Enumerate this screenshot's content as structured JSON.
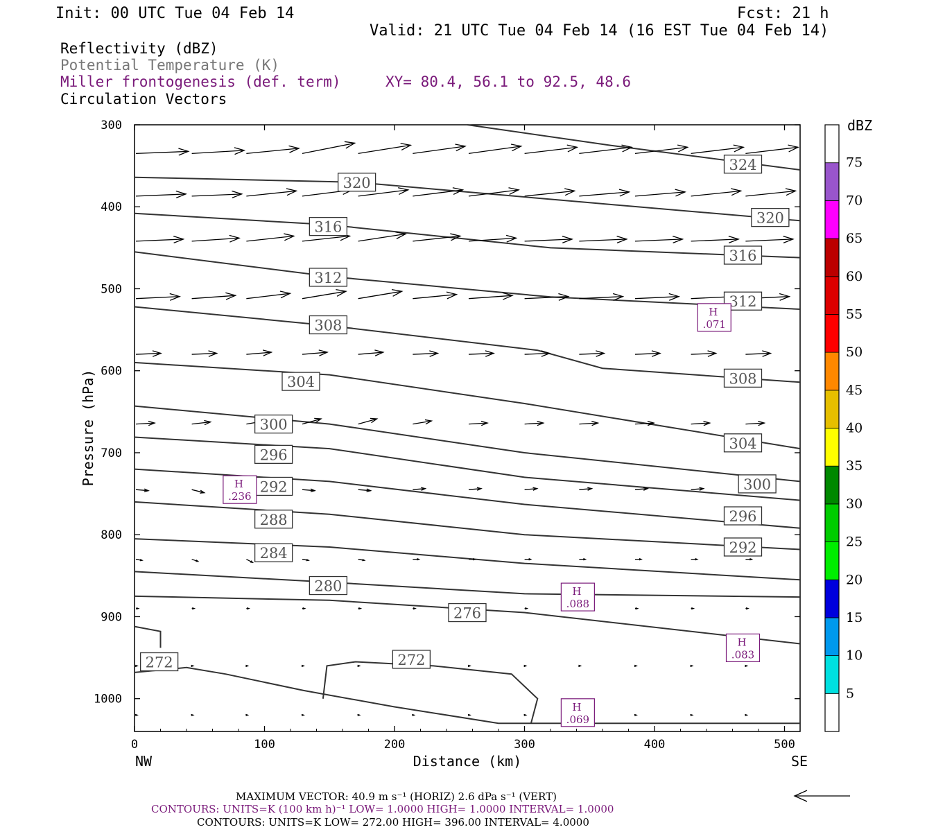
{
  "header": {
    "init": "Init: 00 UTC Tue 04 Feb 14",
    "fcst": "Fcst:   21 h",
    "valid": "Valid: 21 UTC Tue 04 Feb 14 (16 EST Tue 04 Feb 14)"
  },
  "fields": {
    "reflectivity": "Reflectivity (dBZ)",
    "theta": "Potential Temperature (K)",
    "frontogenesis": "Miller frontogenesis (def. term)",
    "xy": "XY=  80.4, 56.1 to  92.5, 48.6",
    "vectors": "Circulation Vectors"
  },
  "colors": {
    "theta": "#777777",
    "frontogenesis": "#7a1a7a",
    "contour": "#333333",
    "vector": "#000000"
  },
  "footer": {
    "max_vector": "MAXIMUM VECTOR:  40.9 m s⁻¹ (HORIZ)          2.6 dPa s⁻¹ (VERT)",
    "contours_fronto": "CONTOURS:  UNITS=K (100 km h)⁻¹  LOW=   1.0000        HIGH=   1.0000        INTERVAL=    1.0000",
    "contours_theta": "CONTOURS:  UNITS=K  LOW=   272.00         HIGH=   396.00         INTERVAL=     4.0000"
  },
  "chart_data": {
    "type": "contour",
    "xlabel": "Distance (km)",
    "ylabel": "Pressure (hPa)",
    "xlim": [
      0,
      512
    ],
    "ylim": [
      1040,
      300
    ],
    "y_reversed": true,
    "x_ticks": [
      0,
      100,
      200,
      300,
      400,
      500
    ],
    "y_ticks": [
      300,
      400,
      500,
      600,
      700,
      800,
      900,
      1000
    ],
    "x_end_labels": {
      "left": "NW",
      "right": "SE"
    },
    "colorbar": {
      "label": "dBZ",
      "ticks": [
        "5",
        "10",
        "15",
        "20",
        "25",
        "30",
        "35",
        "40",
        "45",
        "50",
        "55",
        "60",
        "65",
        "70",
        "75"
      ],
      "colors": [
        "#00e0e0",
        "#0099ee",
        "#0000dd",
        "#00ee00",
        "#00cc00",
        "#008800",
        "#ffff00",
        "#e6bf00",
        "#ff8800",
        "#ff0000",
        "#dd0000",
        "#bb0000",
        "#ff00ff",
        "#9955cc",
        "#ffffff"
      ]
    },
    "theta_contours": [
      {
        "label": "324",
        "points": [
          [
            256,
            300
          ],
          [
            366,
            325
          ],
          [
            512,
            355
          ]
        ]
      },
      {
        "label": "320",
        "points": [
          [
            0,
            364
          ],
          [
            170,
            370
          ],
          [
            350,
            395
          ],
          [
            512,
            417
          ]
        ]
      },
      {
        "label": "316",
        "points": [
          [
            0,
            408
          ],
          [
            150,
            422
          ],
          [
            320,
            450
          ],
          [
            512,
            462
          ]
        ]
      },
      {
        "label": "312",
        "points": [
          [
            0,
            455
          ],
          [
            150,
            485
          ],
          [
            320,
            510
          ],
          [
            512,
            525
          ]
        ]
      },
      {
        "label": "308",
        "points": [
          [
            0,
            522
          ],
          [
            150,
            545
          ],
          [
            310,
            575
          ],
          [
            360,
            597
          ],
          [
            512,
            614
          ]
        ]
      },
      {
        "label": "304",
        "points": [
          [
            0,
            590
          ],
          [
            150,
            605
          ],
          [
            300,
            640
          ],
          [
            512,
            695
          ]
        ]
      },
      {
        "label": "300",
        "points": [
          [
            0,
            643
          ],
          [
            150,
            665
          ],
          [
            300,
            700
          ],
          [
            512,
            735
          ]
        ]
      },
      {
        "label": "296",
        "points": [
          [
            0,
            681
          ],
          [
            150,
            695
          ],
          [
            300,
            730
          ],
          [
            512,
            758
          ]
        ]
      },
      {
        "label": "292",
        "points": [
          [
            0,
            720
          ],
          [
            150,
            735
          ],
          [
            300,
            763
          ],
          [
            512,
            792
          ]
        ]
      },
      {
        "label": "288",
        "points": [
          [
            0,
            760
          ],
          [
            150,
            775
          ],
          [
            300,
            800
          ],
          [
            512,
            818
          ]
        ]
      },
      {
        "label": "284",
        "points": [
          [
            0,
            805
          ],
          [
            150,
            815
          ],
          [
            300,
            835
          ],
          [
            512,
            855
          ]
        ]
      },
      {
        "label": "280",
        "points": [
          [
            0,
            845
          ],
          [
            150,
            858
          ],
          [
            300,
            872
          ],
          [
            512,
            876
          ]
        ]
      },
      {
        "label": "276",
        "points": [
          [
            0,
            875
          ],
          [
            150,
            880
          ],
          [
            300,
            895
          ],
          [
            512,
            933
          ]
        ]
      },
      {
        "label": "272",
        "points": [
          [
            0,
            968
          ],
          [
            40,
            962
          ],
          [
            70,
            970
          ],
          [
            130,
            990
          ],
          [
            200,
            1010
          ],
          [
            280,
            1030
          ],
          [
            512,
            1030
          ]
        ]
      },
      {
        "label": "272",
        "points": [
          [
            145,
            1000
          ],
          [
            148,
            960
          ],
          [
            170,
            955
          ],
          [
            230,
            960
          ],
          [
            290,
            970
          ],
          [
            310,
            1000
          ],
          [
            305,
            1030
          ]
        ]
      },
      {
        "label": "",
        "points": [
          [
            0,
            912
          ],
          [
            20,
            918
          ],
          [
            20,
            938
          ]
        ]
      }
    ],
    "theta_labels": [
      {
        "text": "324",
        "x": 468,
        "p": 348
      },
      {
        "text": "320",
        "x": 171,
        "p": 370
      },
      {
        "text": "320",
        "x": 489,
        "p": 413
      },
      {
        "text": "316",
        "x": 149,
        "p": 424
      },
      {
        "text": "316",
        "x": 468,
        "p": 459
      },
      {
        "text": "312",
        "x": 149,
        "p": 486
      },
      {
        "text": "312",
        "x": 468,
        "p": 515
      },
      {
        "text": "308",
        "x": 149,
        "p": 544
      },
      {
        "text": "308",
        "x": 468,
        "p": 609
      },
      {
        "text": "304",
        "x": 128,
        "p": 613
      },
      {
        "text": "304",
        "x": 468,
        "p": 688
      },
      {
        "text": "300",
        "x": 107,
        "p": 665
      },
      {
        "text": "300",
        "x": 479,
        "p": 738
      },
      {
        "text": "296",
        "x": 107,
        "p": 702
      },
      {
        "text": "296",
        "x": 468,
        "p": 777
      },
      {
        "text": "292",
        "x": 107,
        "p": 741
      },
      {
        "text": "292",
        "x": 468,
        "p": 815
      },
      {
        "text": "288",
        "x": 107,
        "p": 781
      },
      {
        "text": "284",
        "x": 107,
        "p": 822
      },
      {
        "text": "280",
        "x": 149,
        "p": 862
      },
      {
        "text": "276",
        "x": 256,
        "p": 895
      },
      {
        "text": "272",
        "x": 19,
        "p": 955
      },
      {
        "text": "272",
        "x": 213,
        "p": 952
      }
    ],
    "fronto_maxima": [
      {
        "label": "H",
        "value": ".071",
        "x": 446,
        "p": 535
      },
      {
        "label": "H",
        "value": ".236",
        "x": 81,
        "p": 745
      },
      {
        "label": "H",
        "value": ".088",
        "x": 341,
        "p": 876
      },
      {
        "label": "H",
        "value": ".083",
        "x": 468,
        "p": 938
      },
      {
        "label": "H",
        "value": ".069",
        "x": 341,
        "p": 1017
      }
    ],
    "vector_rows": [
      {
        "p": 335,
        "u": 42,
        "ws": [
          2,
          3,
          5,
          10,
          8,
          7,
          7,
          6,
          6,
          6,
          6,
          6
        ]
      },
      {
        "p": 387,
        "u": 40,
        "ws": [
          2,
          2,
          5,
          6,
          6,
          6,
          6,
          5,
          4,
          4,
          5,
          5
        ]
      },
      {
        "p": 442,
        "u": 38,
        "ws": [
          2,
          3,
          5,
          5,
          7,
          5,
          3,
          2,
          2,
          2,
          2,
          2
        ]
      },
      {
        "p": 512,
        "u": 35,
        "ws": [
          2,
          3,
          5,
          7,
          7,
          4,
          3,
          2,
          2,
          2,
          2,
          2
        ]
      },
      {
        "p": 580,
        "u": 20,
        "ws": [
          1,
          1,
          2,
          2,
          2,
          1,
          1,
          1,
          1,
          1,
          1,
          1
        ]
      },
      {
        "p": 665,
        "u": 15,
        "ws": [
          1,
          2,
          3,
          5,
          5,
          3,
          1,
          1,
          1,
          1,
          1,
          1
        ]
      },
      {
        "p": 745,
        "u": 10,
        "ws": [
          -1,
          -3,
          -3,
          -1,
          -1,
          1,
          1,
          1,
          1,
          1,
          1,
          1
        ]
      },
      {
        "p": 830,
        "u": 5,
        "ws": [
          -1,
          -2,
          -3,
          -1,
          -1,
          0,
          0,
          0,
          0,
          0,
          0,
          0
        ]
      },
      {
        "p": 890,
        "u": 2,
        "ws": [
          0,
          0,
          0,
          0,
          0,
          0,
          0,
          0,
          0,
          0,
          0,
          0
        ]
      },
      {
        "p": 960,
        "u": 1,
        "ws": [
          0,
          0,
          0,
          0,
          0,
          0,
          0,
          0,
          0,
          0,
          0,
          0
        ]
      },
      {
        "p": 1020,
        "u": 1,
        "ws": [
          0,
          0,
          0,
          0,
          0,
          0,
          0,
          0,
          0,
          0,
          0,
          0
        ]
      }
    ],
    "vector_x": [
      0,
      43,
      85,
      128,
      171,
      213,
      256,
      299,
      341,
      384,
      427,
      469
    ]
  }
}
